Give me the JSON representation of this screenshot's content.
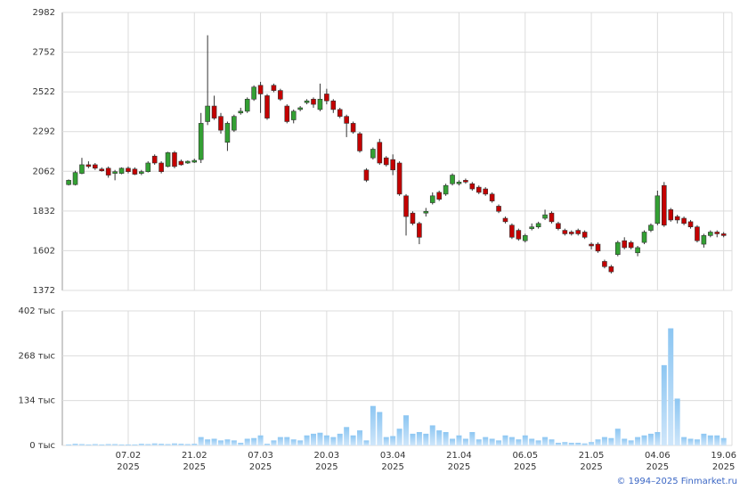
{
  "chart_data": [
    {
      "type": "candlestick",
      "up_color": "#33a033",
      "down_color": "#c40000",
      "ylim": [
        1372,
        2982
      ],
      "yticks": [
        1372,
        1602,
        1832,
        2062,
        2292,
        2522,
        2752,
        2982
      ],
      "grid": true,
      "open": [
        1985,
        1985,
        2050,
        2100,
        2100,
        2075,
        2080,
        2050,
        2050,
        2080,
        2075,
        2050,
        2060,
        2150,
        2110,
        2090,
        2170,
        2120,
        2110,
        2115,
        2130,
        2350,
        2440,
        2380,
        2230,
        2300,
        2400,
        2410,
        2480,
        2560,
        2500,
        2560,
        2530,
        2440,
        2360,
        2420,
        2460,
        2480,
        2420,
        2510,
        2470,
        2420,
        2380,
        2340,
        2280,
        2070,
        2140,
        2230,
        2140,
        2130,
        2110,
        1920,
        1820,
        1760,
        1820,
        1880,
        1940,
        1930,
        1990,
        1990,
        2010,
        1990,
        1970,
        1960,
        1930,
        1860,
        1790,
        1750,
        1720,
        1660,
        1730,
        1740,
        1790,
        1820,
        1760,
        1720,
        1710,
        1720,
        1710,
        1640,
        1640,
        1540,
        1510,
        1580,
        1660,
        1650,
        1590,
        1650,
        1720,
        1760,
        1980,
        1840,
        1800,
        1790,
        1770,
        1740,
        1640,
        1690,
        1710,
        1700
      ],
      "high": [
        2015,
        2065,
        2140,
        2120,
        2110,
        2085,
        2090,
        2070,
        2085,
        2090,
        2085,
        2070,
        2120,
        2160,
        2120,
        2175,
        2180,
        2130,
        2125,
        2135,
        2400,
        2850,
        2500,
        2400,
        2350,
        2390,
        2430,
        2490,
        2560,
        2580,
        2510,
        2570,
        2540,
        2450,
        2420,
        2440,
        2480,
        2490,
        2570,
        2540,
        2480,
        2430,
        2390,
        2350,
        2290,
        2080,
        2200,
        2250,
        2150,
        2160,
        2120,
        1930,
        1830,
        1770,
        1850,
        1940,
        1950,
        1990,
        2050,
        2010,
        2020,
        2000,
        1980,
        1970,
        1940,
        1870,
        1800,
        1760,
        1730,
        1700,
        1760,
        1770,
        1840,
        1830,
        1770,
        1730,
        1720,
        1730,
        1720,
        1650,
        1650,
        1550,
        1520,
        1660,
        1680,
        1660,
        1630,
        1720,
        1760,
        1950,
        2000,
        1850,
        1810,
        1800,
        1780,
        1750,
        1700,
        1720,
        1720,
        1710
      ],
      "low": [
        1980,
        1980,
        2045,
        2080,
        2070,
        2060,
        2025,
        2010,
        2045,
        2050,
        2040,
        2040,
        2055,
        2100,
        2050,
        2085,
        2080,
        2095,
        2105,
        2110,
        2110,
        2330,
        2360,
        2280,
        2180,
        2290,
        2390,
        2400,
        2470,
        2400,
        2360,
        2520,
        2470,
        2340,
        2340,
        2410,
        2450,
        2430,
        2410,
        2450,
        2400,
        2370,
        2260,
        2280,
        2170,
        2000,
        2130,
        2100,
        2090,
        2040,
        1920,
        1690,
        1750,
        1640,
        1800,
        1870,
        1890,
        1920,
        1980,
        1980,
        1990,
        1950,
        1930,
        1920,
        1880,
        1820,
        1760,
        1670,
        1660,
        1650,
        1720,
        1730,
        1780,
        1760,
        1720,
        1690,
        1690,
        1690,
        1670,
        1610,
        1590,
        1500,
        1470,
        1570,
        1610,
        1610,
        1570,
        1640,
        1710,
        1750,
        1740,
        1770,
        1760,
        1750,
        1730,
        1650,
        1620,
        1680,
        1680,
        1680
      ],
      "close": [
        2010,
        2055,
        2100,
        2090,
        2080,
        2065,
        2040,
        2060,
        2080,
        2060,
        2045,
        2060,
        2110,
        2110,
        2060,
        2170,
        2090,
        2100,
        2120,
        2125,
        2340,
        2440,
        2370,
        2300,
        2340,
        2380,
        2410,
        2480,
        2550,
        2510,
        2370,
        2530,
        2480,
        2350,
        2410,
        2430,
        2470,
        2450,
        2480,
        2470,
        2420,
        2380,
        2340,
        2290,
        2180,
        2010,
        2190,
        2110,
        2100,
        2070,
        1930,
        1800,
        1760,
        1680,
        1830,
        1920,
        1900,
        1980,
        2040,
        2000,
        2000,
        1960,
        1940,
        1930,
        1890,
        1830,
        1770,
        1680,
        1670,
        1690,
        1740,
        1760,
        1810,
        1770,
        1730,
        1700,
        1700,
        1700,
        1680,
        1630,
        1600,
        1510,
        1480,
        1650,
        1620,
        1620,
        1620,
        1710,
        1750,
        1920,
        1750,
        1780,
        1780,
        1760,
        1740,
        1660,
        1690,
        1710,
        1700,
        1690
      ]
    },
    {
      "type": "bar",
      "color": "#7fbff0",
      "categories": [
        null,
        null,
        null,
        null,
        null,
        null,
        null,
        null,
        null,
        "07.02\n2025",
        null,
        null,
        null,
        null,
        null,
        null,
        null,
        null,
        null,
        "21.02\n2025",
        null,
        null,
        null,
        null,
        null,
        null,
        null,
        null,
        null,
        "07.03\n2025",
        null,
        null,
        null,
        null,
        null,
        null,
        null,
        null,
        null,
        "20.03\n2025",
        null,
        null,
        null,
        null,
        null,
        null,
        null,
        null,
        null,
        "03.04\n2025",
        null,
        null,
        null,
        null,
        null,
        null,
        null,
        null,
        null,
        "21.04\n2025",
        null,
        null,
        null,
        null,
        null,
        null,
        null,
        null,
        null,
        "06.05\n2025",
        null,
        null,
        null,
        null,
        null,
        null,
        null,
        null,
        null,
        "21.05\n2025",
        null,
        null,
        null,
        null,
        null,
        null,
        null,
        null,
        null,
        "04.06\n2025",
        null,
        null,
        null,
        null,
        null,
        null,
        null,
        null,
        null,
        "19.06\n2025"
      ],
      "values": [
        3,
        5,
        4,
        3,
        4,
        3,
        4,
        4,
        3,
        3,
        3,
        5,
        4,
        6,
        5,
        4,
        6,
        5,
        4,
        5,
        25,
        18,
        20,
        15,
        18,
        15,
        8,
        20,
        22,
        30,
        5,
        15,
        25,
        25,
        18,
        15,
        30,
        35,
        38,
        30,
        25,
        35,
        55,
        30,
        45,
        15,
        118,
        100,
        25,
        28,
        50,
        90,
        35,
        40,
        35,
        60,
        45,
        40,
        20,
        30,
        20,
        40,
        18,
        25,
        20,
        15,
        30,
        25,
        18,
        30,
        20,
        15,
        25,
        18,
        8,
        10,
        8,
        8,
        6,
        10,
        18,
        25,
        22,
        50,
        20,
        15,
        25,
        30,
        35,
        40,
        240,
        350,
        140,
        25,
        20,
        18,
        35,
        30,
        30,
        22
      ],
      "ylim": [
        0,
        402
      ],
      "yticks": [
        {
          "value": 0,
          "label": "0 тыс"
        },
        {
          "value": 134,
          "label": "134 тыс"
        },
        {
          "value": 268,
          "label": "268 тыс"
        },
        {
          "value": 402,
          "label": "402 тыс"
        }
      ],
      "grid": true
    }
  ],
  "footer": "© 1994–2025 Finmarket.ru"
}
